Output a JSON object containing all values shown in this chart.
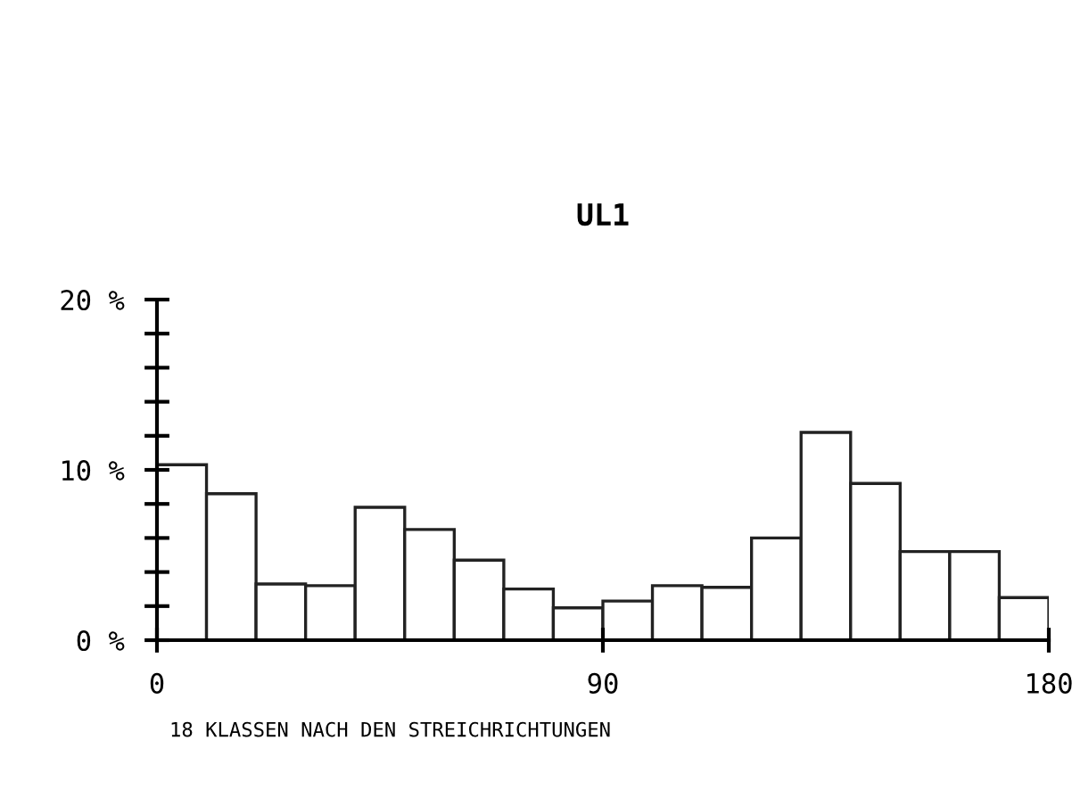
{
  "chart_data": {
    "type": "histogram",
    "title": "UL1",
    "bins": [
      0,
      10,
      20,
      30,
      40,
      50,
      60,
      70,
      80,
      90,
      100,
      110,
      120,
      130,
      140,
      150,
      160,
      170,
      180
    ],
    "values": [
      10.3,
      8.6,
      3.3,
      3.2,
      7.8,
      6.5,
      4.7,
      3.0,
      1.9,
      2.3,
      3.2,
      3.1,
      6.0,
      12.2,
      9.2,
      5.2,
      5.2,
      2.5
    ],
    "color": "#ffffff",
    "xlim": [
      0,
      180
    ],
    "xticks": [
      0,
      90,
      180
    ],
    "ylim": [
      0,
      20
    ],
    "yticks": [
      {
        "value": 0,
        "label": "0 %"
      },
      {
        "value": 2,
        "label": null
      },
      {
        "value": 4,
        "label": null
      },
      {
        "value": 6,
        "label": null
      },
      {
        "value": 8,
        "label": null
      },
      {
        "value": 10,
        "label": "10 %"
      },
      {
        "value": 12,
        "label": null
      },
      {
        "value": 14,
        "label": null
      },
      {
        "value": 16,
        "label": null
      },
      {
        "value": 18,
        "label": null
      },
      {
        "value": 20,
        "label": "20 %"
      }
    ],
    "annotations": [
      "18 KLASSEN NACH DEN STREICHRICHTUNGEN"
    ],
    "grid": false,
    "legend": false
  }
}
